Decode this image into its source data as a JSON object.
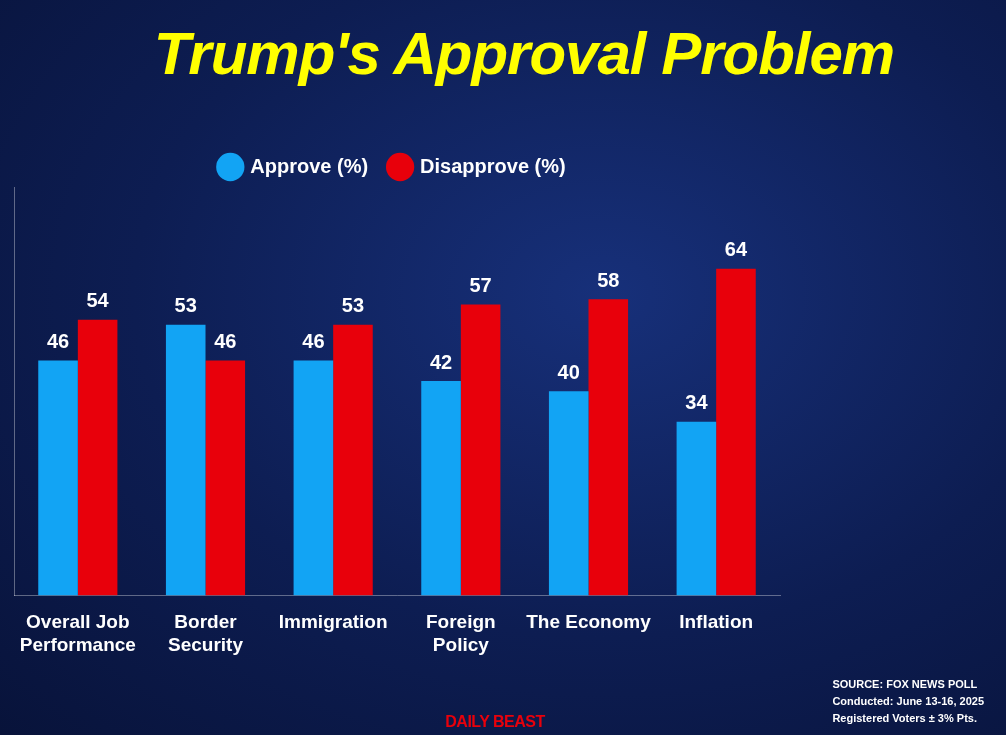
{
  "chart_data": {
    "type": "bar",
    "title": "Trump's Approval Problem",
    "categories": [
      "Overall Job Performance",
      "Border Security",
      "Immigration",
      "Foreign Policy",
      "The Economy",
      "Inflation"
    ],
    "series": [
      {
        "name": "Approve (%)",
        "color": "#12a4f4",
        "values": [
          46,
          53,
          46,
          42,
          40,
          34
        ]
      },
      {
        "name": "Disapprove (%)",
        "color": "#e8000b",
        "values": [
          54,
          46,
          53,
          57,
          58,
          64
        ]
      }
    ],
    "ylim": [
      0,
      80
    ],
    "grid": false,
    "legend": "top",
    "data_labels": true,
    "tick_labels": "x",
    "source": [
      "SOURCE: FOX NEWS POLL",
      "Conducted: June 13-16, 2025",
      "Registered Voters ± 3% Pts."
    ],
    "credit": "DAILY BEAST"
  }
}
